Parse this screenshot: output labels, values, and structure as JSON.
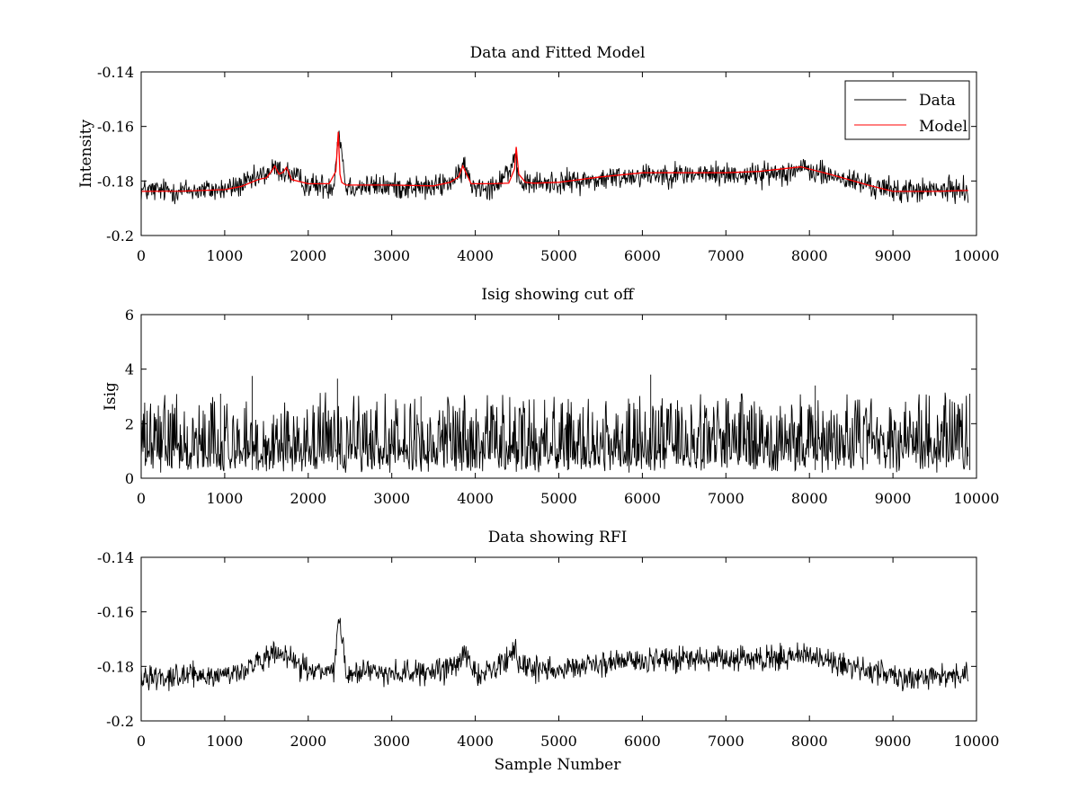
{
  "chart_data": [
    {
      "type": "line",
      "title": "Data and Fitted Model",
      "xlabel": "",
      "ylabel": "Intensity",
      "xlim": [
        0,
        10000
      ],
      "ylim": [
        -0.2,
        -0.14
      ],
      "xticks": [
        "0",
        "1000",
        "2000",
        "3000",
        "4000",
        "5000",
        "6000",
        "7000",
        "8000",
        "9000",
        "10000"
      ],
      "yticks": [
        "-0.2",
        "-0.18",
        "-0.16",
        "-0.14"
      ],
      "grid": false,
      "legend": {
        "placement": "top-right",
        "entries": [
          "Data",
          "Model"
        ]
      },
      "series": [
        {
          "name": "Data",
          "color": "#000000",
          "description_points": {
            "x": [
              0,
              500,
              1000,
              1300,
              1600,
              1750,
              2000,
              2300,
              2370,
              2450,
              3000,
              3500,
              3800,
              3860,
              3950,
              4200,
              4480,
              4520,
              4700,
              5000,
              5500,
              6000,
              6500,
              7000,
              7500,
              7900,
              8300,
              8700,
              9000,
              9500,
              9900
            ],
            "y": [
              -0.1835,
              -0.1835,
              -0.1832,
              -0.1805,
              -0.1755,
              -0.177,
              -0.1815,
              -0.182,
              -0.161,
              -0.182,
              -0.182,
              -0.1825,
              -0.179,
              -0.1735,
              -0.1815,
              -0.182,
              -0.1735,
              -0.1805,
              -0.181,
              -0.1805,
              -0.1795,
              -0.1775,
              -0.1775,
              -0.1775,
              -0.1775,
              -0.1755,
              -0.1785,
              -0.1815,
              -0.1835,
              -0.1835,
              -0.183
            ]
          },
          "noise_amplitude": 0.004,
          "spike_max": -0.158
        },
        {
          "name": "Model",
          "color": "#ff0000",
          "x": [
            0,
            500,
            1000,
            1200,
            1400,
            1500,
            1560,
            1600,
            1650,
            1700,
            1740,
            1800,
            2000,
            2250,
            2330,
            2360,
            2380,
            2400,
            2450,
            2600,
            3000,
            3500,
            3700,
            3800,
            3850,
            3880,
            3950,
            4200,
            4400,
            4470,
            4490,
            4520,
            4600,
            4700,
            5000,
            5500,
            6000,
            6500,
            7000,
            7400,
            7900,
            8300,
            8700,
            9000,
            9500,
            9900
          ],
          "y": [
            -0.1838,
            -0.1837,
            -0.1832,
            -0.182,
            -0.1795,
            -0.1788,
            -0.1765,
            -0.1745,
            -0.1775,
            -0.1768,
            -0.175,
            -0.1795,
            -0.181,
            -0.181,
            -0.1765,
            -0.162,
            -0.1775,
            -0.1805,
            -0.1815,
            -0.1815,
            -0.1815,
            -0.1818,
            -0.1805,
            -0.1785,
            -0.1745,
            -0.1765,
            -0.181,
            -0.181,
            -0.1808,
            -0.1755,
            -0.1675,
            -0.1775,
            -0.1805,
            -0.1808,
            -0.1805,
            -0.1785,
            -0.177,
            -0.177,
            -0.177,
            -0.1765,
            -0.1748,
            -0.178,
            -0.1815,
            -0.1838,
            -0.1838,
            -0.1835
          ]
        }
      ]
    },
    {
      "type": "line",
      "title": "Isig showing cut off",
      "xlabel": "",
      "ylabel": "Isig",
      "xlim": [
        0,
        10000
      ],
      "ylim": [
        0,
        6
      ],
      "xticks": [
        "0",
        "1000",
        "2000",
        "3000",
        "4000",
        "5000",
        "6000",
        "7000",
        "8000",
        "9000",
        "10000"
      ],
      "yticks": [
        "0",
        "2",
        "4",
        "6"
      ],
      "grid": false,
      "series": [
        {
          "color": "#000000",
          "description_points": {
            "x": [
              0,
              10000
            ],
            "y": [
              0.8,
              0.8
            ]
          },
          "noise_amplitude": 1.1,
          "spike_max": 3.8,
          "spikes": [
            [
              1330,
              3.75
            ],
            [
              2350,
              3.65
            ],
            [
              6100,
              3.8
            ],
            [
              8070,
              3.4
            ],
            [
              950,
              3.1
            ],
            [
              3350,
              3.0
            ],
            [
              9920,
              3.1
            ]
          ]
        }
      ]
    },
    {
      "type": "line",
      "title": "Data showing RFI",
      "xlabel": "Sample Number",
      "ylabel": "",
      "xlim": [
        0,
        10000
      ],
      "ylim": [
        -0.2,
        -0.14
      ],
      "xticks": [
        "0",
        "1000",
        "2000",
        "3000",
        "4000",
        "5000",
        "6000",
        "7000",
        "8000",
        "9000",
        "10000"
      ],
      "yticks": [
        "-0.2",
        "-0.18",
        "-0.16",
        "-0.14"
      ],
      "grid": false,
      "series": [
        {
          "color": "#000000",
          "description_points": {
            "x": [
              0,
              500,
              1000,
              1300,
              1600,
              1750,
              2000,
              2300,
              2370,
              2450,
              3000,
              3500,
              3800,
              3860,
              3950,
              4200,
              4480,
              4520,
              4700,
              5000,
              5500,
              6000,
              6500,
              7000,
              7500,
              7900,
              8300,
              8700,
              9000,
              9500,
              9900
            ],
            "y": [
              -0.1835,
              -0.1835,
              -0.1832,
              -0.1805,
              -0.1755,
              -0.177,
              -0.1815,
              -0.182,
              -0.161,
              -0.182,
              -0.182,
              -0.1825,
              -0.179,
              -0.1735,
              -0.1815,
              -0.182,
              -0.1735,
              -0.1805,
              -0.181,
              -0.1805,
              -0.1795,
              -0.1775,
              -0.1775,
              -0.1775,
              -0.1775,
              -0.1755,
              -0.1785,
              -0.1815,
              -0.1835,
              -0.1835,
              -0.183
            ]
          },
          "noise_amplitude": 0.004,
          "spike_max": -0.158
        }
      ]
    }
  ]
}
